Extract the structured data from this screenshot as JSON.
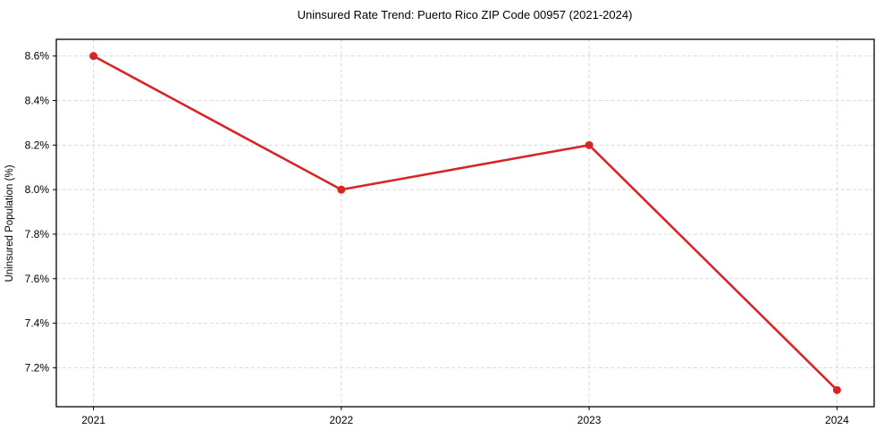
{
  "chart_data": {
    "type": "line",
    "title": "Uninsured Rate Trend: Puerto Rico ZIP Code 00957 (2021-2024)",
    "xlabel": "",
    "ylabel": "Uninsured Population (%)",
    "x": [
      2021,
      2022,
      2023,
      2024
    ],
    "x_tick_labels": [
      "2021",
      "2022",
      "2023",
      "2024"
    ],
    "series": [
      {
        "name": "Uninsured Population (%)",
        "values": [
          8.6,
          8.0,
          8.2,
          7.1
        ]
      }
    ],
    "y_ticks": [
      7.2,
      7.4,
      7.6,
      7.8,
      8.0,
      8.2,
      8.4,
      8.6
    ],
    "y_tick_labels": [
      "7.2%",
      "7.4%",
      "7.6%",
      "7.8%",
      "8.0%",
      "8.2%",
      "8.4%",
      "8.6%"
    ],
    "xlim": [
      2020.85,
      2024.15
    ],
    "ylim": [
      7.025,
      8.675
    ],
    "grid": true,
    "grid_line_style": "dashed",
    "legend_position": "none",
    "colors": {
      "line": "#d62728",
      "marker": "#d62728",
      "grid": "#d9d9d9",
      "axis_border": "#000000",
      "text": "#000000",
      "background": "#ffffff"
    },
    "line_width": 2.6,
    "marker_radius": 4.5
  }
}
